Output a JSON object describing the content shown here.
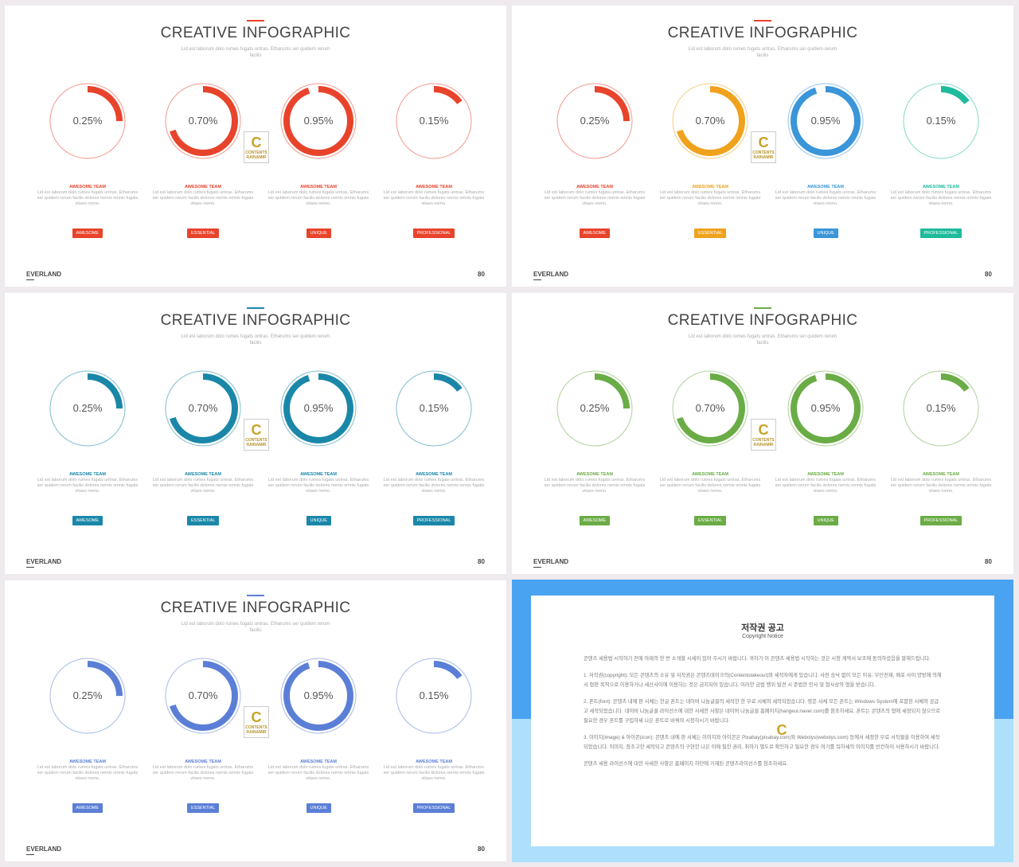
{
  "slides": [
    {
      "accent": "#e8432b",
      "ring_colors": [
        "#e8432b",
        "#e8432b",
        "#e8432b",
        "#e8432b"
      ]
    },
    {
      "accent": "#e8432b",
      "ring_colors": [
        "#e8432b",
        "#f0a21c",
        "#3a95d9",
        "#1dbb9c"
      ]
    },
    {
      "accent": "#1a87a9",
      "ring_colors": [
        "#1a87a9",
        "#1a87a9",
        "#1a87a9",
        "#1a87a9"
      ]
    },
    {
      "accent": "#6aac45",
      "ring_colors": [
        "#6aac45",
        "#6aac45",
        "#6aac45",
        "#6aac45"
      ]
    },
    {
      "accent": "#5b7fd6",
      "ring_colors": [
        "#5b7fd6",
        "#5b7fd6",
        "#5b7fd6",
        "#5b7fd6"
      ]
    }
  ],
  "slide_content": {
    "title": "CREATIVE INFOGRAPHIC",
    "subtitle": "Lid est laborum dolo rumes fugats untras. Etharums ser quidem rerum facilis",
    "items": [
      {
        "value": "0.25%",
        "fraction": 0.25,
        "title": "AWESOME TEAM",
        "desc": "Lid est laborum dolo rumes fugats untras. Etharums ser quidem rerum facilis dolores nemis omnis fugats vitaes nemo.",
        "tag": "AWESOME"
      },
      {
        "value": "0.70%",
        "fraction": 0.7,
        "title": "AWESOME TEAM",
        "desc": "Lid est laborum dolo rumes fugats untras. Etharums ser quidem rerum facilis dolores nemis omnis fugats vitaes nemo.",
        "tag": "ESSENTIAL"
      },
      {
        "value": "0.95%",
        "fraction": 0.95,
        "title": "AWESOME TEAM",
        "desc": "Lid est laborum dolo rumes fugats untras. Etharums ser quidem rerum facilis dolores nemis omnis fugats vitaes nemo.",
        "tag": "UNIQUE"
      },
      {
        "value": "0.15%",
        "fraction": 0.15,
        "title": "AWESOME TEAM",
        "desc": "Lid est laborum dolo rumes fugats untras. Etharums ser quidem rerum facilis dolores nemis omnis fugats vitaes nemo.",
        "tag": "PROFESSIONAL"
      }
    ],
    "brand": "EVERLAND",
    "page": "80",
    "logo": {
      "letter": "C",
      "line1": "CONTENTS",
      "line2": "RAINAMIR"
    }
  },
  "notice": {
    "title": "저작권 공고",
    "subtitle": "Copyright Notice",
    "colors": {
      "top": "#4aa3f0",
      "bottom": "#aee0fb"
    },
    "paragraphs": [
      "콘텐츠 세용법 시작하기 전에 아래의 한 번 소개할 시세이 있어 주시기 바랍니다. 귀하가 이 콘텐츠 세용법 시작하는 것은 시청 계약서 보조에 동의하셨음을 말해드립니다.",
      "1. 저작권(copyright): 모든 콘텐츠의 소유 및 저작권은 콘텐츠테이크의(Contentstakeout)와 세작자에게 있습니다. 사전 승낙 없이 모든 이유, 무단전재, 배포 사이 양방에 의해서 형판 목적으로 이용하거나 세산사이에 이용하는 것은 금지되어 있습니다. 이러한 금법 행위 발견 시 준법한 민사 및 형사상의 형을 받습니다.",
      "2. 폰트(font): 콘텐츠 내에 판 서체는 한글 폰트는 네이버 나눔글꼴의 세작한 한 무료 서체와 세작되었습니다. 영문 서체 모든 폰트는 Windows System에 포함된 서체와 공급고 세작되었습니다. 네이버 나눔글꼴 라이선스에 대한 사세한 사항은 네이버 나눔글꼴 홈페이지(hangeul.naver.com)를 참조하세요. 폰트는 콘텐츠의 형에 세정되지 않으므로 필요한 경우 폰트를 구입하세 나은 폰트로 바꿔야 시청하시기 바랍니다.",
      "3. 이미지(image) & 아이콘(icon): 콘텐츠 내에 판 서체는 이미지와 아이콘은 Pixabay(pixabay.com)와 Webolys(webolys.com) 등에서 세정한 무료 서작물을 이용하여 세작되었습니다. 이미지, 참조고한 세작되고 콘텐츠의 구현한 나은 이에 필한 권리, 취하기 별도로 확인하고 필요한 경우 여기를 둬하세의 이미지를 빈칸하이 사용하시기 바랍니다.",
      "콘텐츠 세용 라이선스에 대한 사세한 사항은 홈페이지 하단에 기재된 콘텐츠라이선스를 참조하세요."
    ]
  }
}
